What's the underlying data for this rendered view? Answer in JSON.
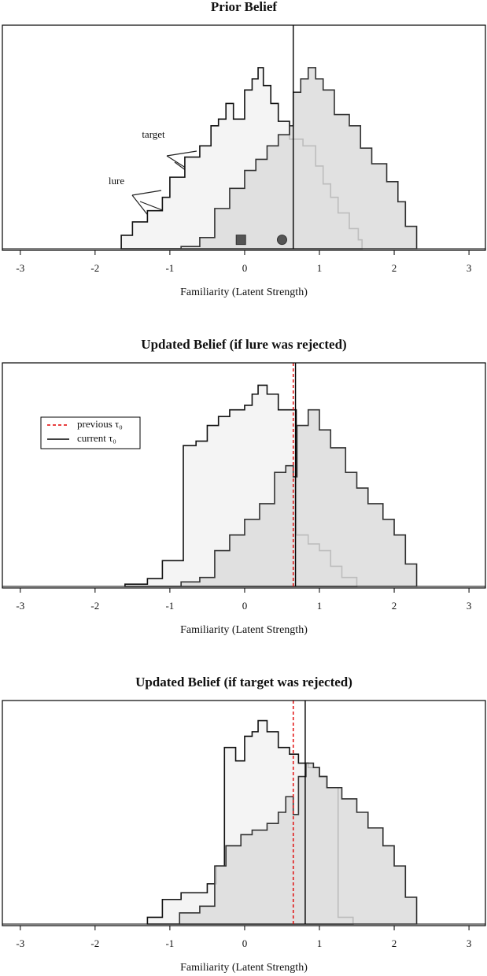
{
  "chart_data": [
    {
      "type": "step",
      "title": "Prior Belief",
      "xlabel": "Familiarity (Latent Strength)",
      "xlim": [
        -3.24,
        3.22
      ],
      "ylim": [
        0,
        1
      ],
      "xticks": [
        -3,
        -2,
        -1,
        0,
        1,
        2,
        3
      ],
      "series": [
        {
          "color": "#f4f4f4",
          "bins": [
            -1.65,
            -1.5,
            -1.3,
            -1.1,
            -1.0,
            -0.8,
            -0.6,
            -0.45,
            -0.35,
            -0.25,
            -0.15,
            0,
            0.1,
            0.18,
            0.25,
            0.35,
            0.45,
            0.6,
            0.78,
            0.95,
            1.05,
            1.15,
            1.25,
            1.4,
            1.52,
            1.57
          ],
          "values": [
            0.06,
            0.12,
            0.17,
            0.23,
            0.32,
            0.41,
            0.46,
            0.55,
            0.58,
            0.65,
            0.58,
            0.71,
            0.76,
            0.81,
            0.73,
            0.65,
            0.57,
            0.49,
            0.46,
            0.37,
            0.29,
            0.23,
            0.16,
            0.09,
            0.04
          ]
        },
        {
          "color": "#dcdcdc",
          "bins": [
            -0.85,
            -0.6,
            -0.4,
            -0.2,
            0,
            0.15,
            0.3,
            0.45,
            0.6,
            0.65,
            0.75,
            0.85,
            0.95,
            1.05,
            1.2,
            1.4,
            1.55,
            1.7,
            1.9,
            2.05,
            2.15,
            2.3
          ],
          "values": [
            0.01,
            0.05,
            0.18,
            0.27,
            0.35,
            0.4,
            0.46,
            0.51,
            0.55,
            0.7,
            0.76,
            0.81,
            0.76,
            0.71,
            0.6,
            0.55,
            0.45,
            0.38,
            0.3,
            0.21,
            0.1
          ]
        }
      ],
      "lines": [
        {
          "x": 0.65,
          "color": "#000000"
        }
      ],
      "points": [
        {
          "x": -0.05,
          "y": 0.04,
          "shape": "square"
        },
        {
          "x": 0.5,
          "y": 0.04,
          "shape": "circle"
        }
      ],
      "annotations": [
        "target",
        "lure"
      ]
    },
    {
      "type": "step",
      "title": "Updated Belief (if lure was rejected)",
      "xlabel": "Familiarity (Latent Strength)",
      "xlim": [
        -3.24,
        3.22
      ],
      "ylim": [
        0,
        1
      ],
      "xticks": [
        -3,
        -2,
        -1,
        0,
        1,
        2,
        3
      ],
      "series": [
        {
          "color": "#f4f4f4",
          "bins": [
            -1.6,
            -1.3,
            -1.1,
            -0.82,
            -0.65,
            -0.5,
            -0.35,
            -0.2,
            0,
            0.1,
            0.18,
            0.3,
            0.45,
            0.69,
            0.85,
            1.0,
            1.15,
            1.3,
            1.5
          ],
          "values": [
            0.01,
            0.035,
            0.115,
            0.63,
            0.65,
            0.72,
            0.76,
            0.79,
            0.81,
            0.86,
            0.9,
            0.86,
            0.79,
            0.23,
            0.19,
            0.16,
            0.09,
            0.04
          ]
        },
        {
          "color": "#dcdcdc",
          "bins": [
            -0.85,
            -0.6,
            -0.4,
            -0.2,
            0,
            0.2,
            0.4,
            0.55,
            0.65,
            0.7,
            0.85,
            1.0,
            1.15,
            1.35,
            1.5,
            1.65,
            1.85,
            2.0,
            2.15,
            2.3
          ],
          "values": [
            0.02,
            0.04,
            0.16,
            0.23,
            0.3,
            0.37,
            0.51,
            0.54,
            0.49,
            0.72,
            0.79,
            0.7,
            0.62,
            0.51,
            0.44,
            0.37,
            0.3,
            0.23,
            0.1
          ]
        }
      ],
      "lines": [
        {
          "name": "previous τ₀",
          "x": 0.65,
          "color": "#e00000",
          "dash": true
        },
        {
          "name": "current τ₀",
          "x": 0.68,
          "color": "#000000"
        }
      ]
    },
    {
      "type": "step",
      "title": "Updated Belief (if target was rejected)",
      "xlabel": "Familiarity (Latent Strength)",
      "xlim": [
        -3.24,
        3.22
      ],
      "ylim": [
        0,
        1
      ],
      "xticks": [
        -3,
        -2,
        -1,
        0,
        1,
        2,
        3
      ],
      "series": [
        {
          "color": "#f4f4f4",
          "bins": [
            -1.3,
            -1.1,
            -0.85,
            -0.5,
            -0.38,
            -0.27,
            -0.12,
            0,
            0.1,
            0.18,
            0.3,
            0.45,
            0.6,
            0.72,
            0.85,
            1.0,
            1.1,
            1.25,
            1.45
          ],
          "values": [
            0.03,
            0.11,
            0.14,
            0.18,
            0.26,
            0.79,
            0.73,
            0.84,
            0.86,
            0.91,
            0.86,
            0.79,
            0.76,
            0.72,
            0.7,
            0.66,
            0.61,
            0.03
          ]
        },
        {
          "color": "#dcdcdc",
          "bins": [
            -0.87,
            -0.6,
            -0.4,
            -0.25,
            -0.05,
            0.1,
            0.3,
            0.45,
            0.55,
            0.65,
            0.72,
            0.82,
            0.92,
            1.0,
            1.1,
            1.3,
            1.5,
            1.65,
            1.85,
            2.0,
            2.15,
            2.3
          ],
          "values": [
            0.05,
            0.08,
            0.26,
            0.35,
            0.4,
            0.42,
            0.45,
            0.5,
            0.57,
            0.49,
            0.66,
            0.72,
            0.7,
            0.66,
            0.61,
            0.56,
            0.5,
            0.43,
            0.35,
            0.26,
            0.12
          ]
        }
      ],
      "lines": [
        {
          "x": 0.65,
          "color": "#e00000",
          "dash": true
        },
        {
          "x": 0.81,
          "color": "#000000"
        }
      ]
    }
  ]
}
